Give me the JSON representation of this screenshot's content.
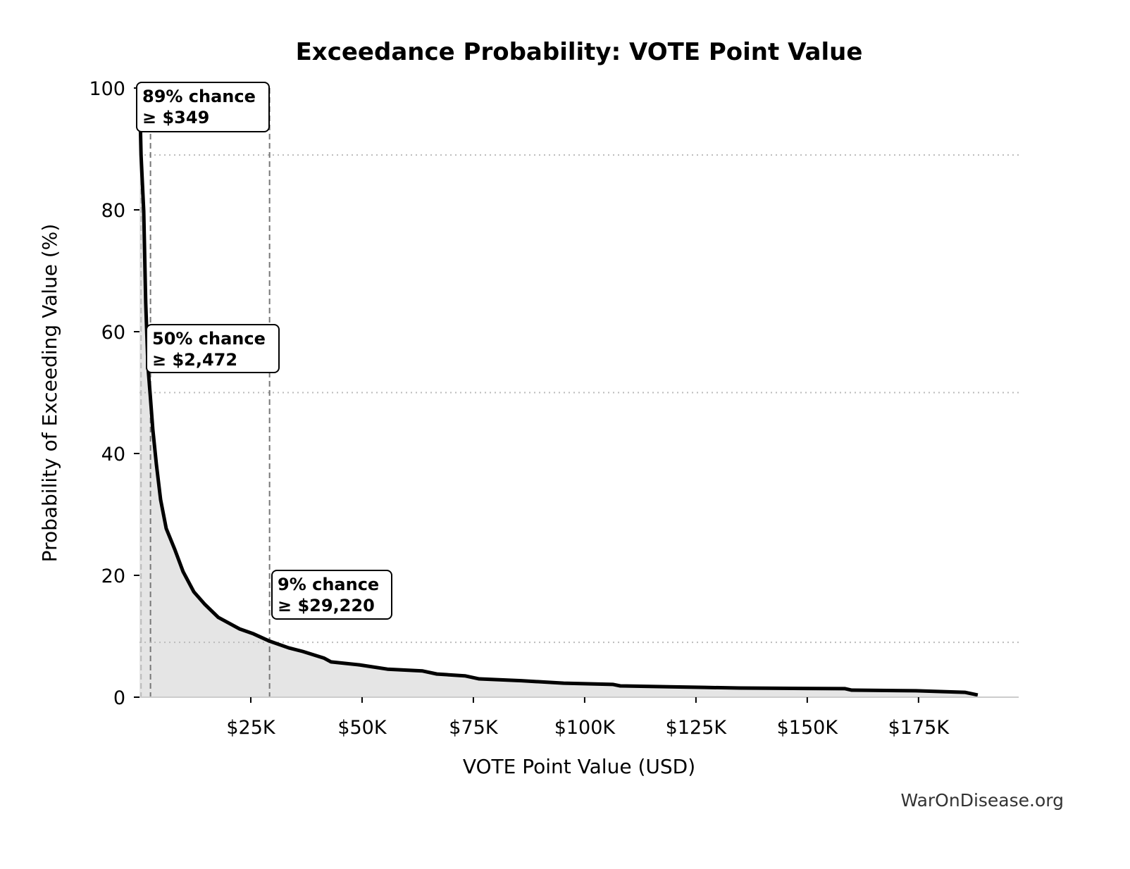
{
  "chart_data": {
    "type": "area",
    "title": "Exceedance Probability: VOTE Point Value",
    "xlabel": "VOTE Point Value (USD)",
    "ylabel": "Probability of Exceeding Value (%)",
    "xlim": [
      0,
      197500
    ],
    "ylim": [
      0,
      100
    ],
    "x_ticks": [
      {
        "value": 25000,
        "label": "$25K"
      },
      {
        "value": 50000,
        "label": "$50K"
      },
      {
        "value": 75000,
        "label": "$75K"
      },
      {
        "value": 100000,
        "label": "$100K"
      },
      {
        "value": 125000,
        "label": "$125K"
      },
      {
        "value": 150000,
        "label": "$150K"
      },
      {
        "value": 175000,
        "label": "$175K"
      }
    ],
    "y_ticks": [
      {
        "value": 0,
        "label": "0"
      },
      {
        "value": 20,
        "label": "20"
      },
      {
        "value": 40,
        "label": "40"
      },
      {
        "value": 60,
        "label": "60"
      },
      {
        "value": 80,
        "label": "80"
      },
      {
        "value": 100,
        "label": "100"
      }
    ],
    "grid": false,
    "line_color": "#000000",
    "fill_color": "#e5e5e5",
    "series": [
      {
        "x": [
          0,
          350,
          950,
          1400,
          1900,
          2400,
          3000,
          3800,
          4750,
          6000,
          7900,
          9800,
          12200,
          14600,
          17700,
          22500,
          25600,
          29200,
          33500,
          36700,
          41500,
          43000,
          49400,
          55700,
          63600,
          66800,
          73100,
          76300,
          85800,
          95300,
          106300,
          108000,
          119000,
          127000,
          134800,
          158500,
          160000,
          174400,
          185400,
          188300
        ],
        "y": [
          100,
          89,
          79.8,
          64.7,
          54.3,
          49.7,
          43.9,
          38.2,
          32.4,
          27.7,
          24.3,
          20.6,
          17.3,
          15.3,
          13.1,
          11.2,
          10.4,
          9.2,
          8.1,
          7.5,
          6.4,
          5.8,
          5.3,
          4.6,
          4.3,
          3.8,
          3.5,
          3.0,
          2.7,
          2.3,
          2.1,
          1.85,
          1.7,
          1.6,
          1.5,
          1.4,
          1.15,
          1.05,
          0.8,
          0.35
        ]
      }
    ],
    "annotations": [
      {
        "probability": 89,
        "value": 349,
        "line1": "89% chance",
        "line2": "≥ $349"
      },
      {
        "probability": 50,
        "value": 2472,
        "line1": "50% chance",
        "line2": "≥ $2,472"
      },
      {
        "probability": 9,
        "value": 29220,
        "line1": "9% chance",
        "line2": "≥ $29,220"
      }
    ]
  },
  "watermark": "WarOnDisease.org"
}
